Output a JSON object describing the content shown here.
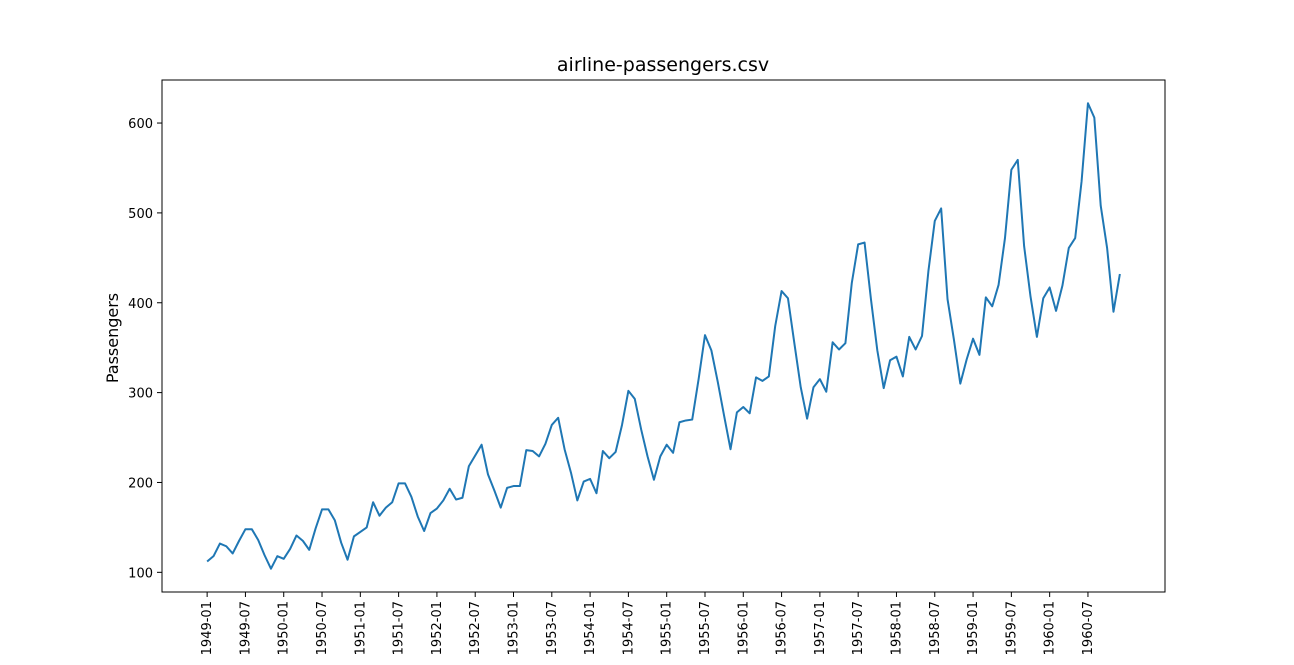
{
  "chart_data": {
    "type": "line",
    "title": "airline-passengers.csv",
    "xlabel": "",
    "ylabel": "Passengers",
    "ylim": [
      78.1,
      647.9
    ],
    "yticks": [
      100,
      200,
      300,
      400,
      500,
      600
    ],
    "grid": false,
    "line_color": "#1f77b4",
    "start_month": "1949-01",
    "xtick_labels": [
      "1949-01",
      "1949-07",
      "1950-01",
      "1950-07",
      "1951-01",
      "1951-07",
      "1952-01",
      "1952-07",
      "1953-01",
      "1953-07",
      "1954-01",
      "1954-07",
      "1955-01",
      "1955-07",
      "1956-01",
      "1956-07",
      "1957-01",
      "1957-07",
      "1958-01",
      "1958-07",
      "1959-01",
      "1959-07",
      "1960-01",
      "1960-07"
    ],
    "series": [
      {
        "values": [
          112,
          118,
          132,
          129,
          121,
          135,
          148,
          148,
          136,
          119,
          104,
          118,
          115,
          126,
          141,
          135,
          125,
          149,
          170,
          170,
          158,
          133,
          114,
          140,
          145,
          150,
          178,
          163,
          172,
          178,
          199,
          199,
          184,
          162,
          146,
          166,
          171,
          180,
          193,
          181,
          183,
          218,
          230,
          242,
          209,
          191,
          172,
          194,
          196,
          196,
          236,
          235,
          229,
          243,
          264,
          272,
          237,
          211,
          180,
          201,
          204,
          188,
          235,
          227,
          234,
          264,
          302,
          293,
          259,
          229,
          203,
          229,
          242,
          233,
          267,
          269,
          270,
          315,
          364,
          347,
          312,
          274,
          237,
          278,
          284,
          277,
          317,
          313,
          318,
          374,
          413,
          405,
          355,
          306,
          271,
          306,
          315,
          301,
          356,
          348,
          355,
          422,
          465,
          467,
          404,
          347,
          305,
          336,
          340,
          318,
          362,
          348,
          363,
          435,
          491,
          505,
          404,
          359,
          310,
          337,
          360,
          342,
          406,
          396,
          420,
          472,
          548,
          559,
          463,
          407,
          362,
          405,
          417,
          391,
          419,
          461,
          472,
          535,
          622,
          606,
          508,
          461,
          390,
          432
        ]
      }
    ]
  }
}
